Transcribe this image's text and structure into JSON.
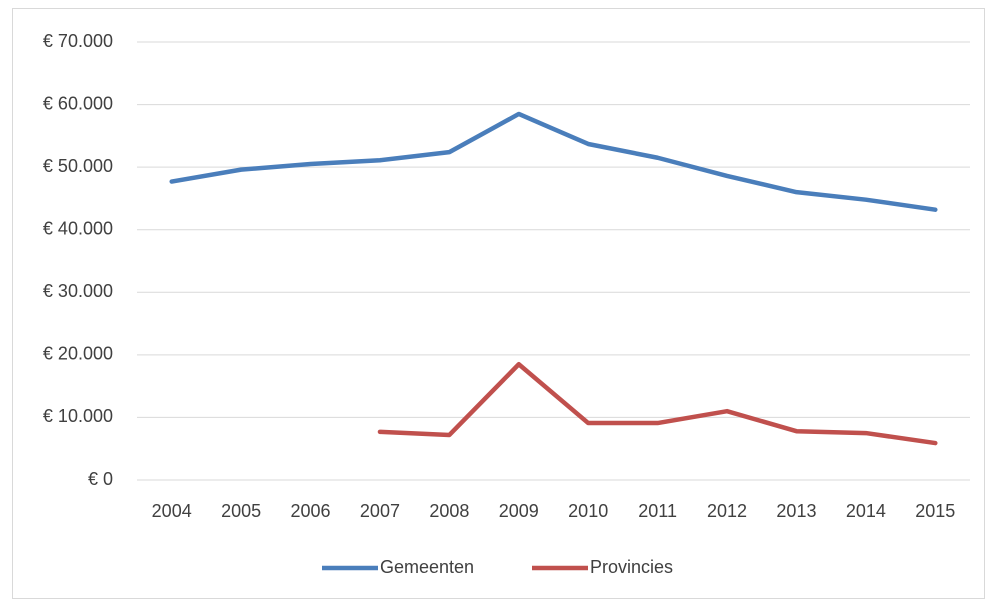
{
  "chart_data": {
    "type": "line",
    "categories": [
      "2004",
      "2005",
      "2006",
      "2007",
      "2008",
      "2009",
      "2010",
      "2011",
      "2012",
      "2013",
      "2014",
      "2015"
    ],
    "series": [
      {
        "name": "Gemeenten",
        "color": "#4a7ebb",
        "values": [
          47700,
          49600,
          50500,
          51100,
          52400,
          58500,
          53700,
          51500,
          48600,
          46000,
          44800,
          43200
        ]
      },
      {
        "name": "Provincies",
        "color": "#c0504d",
        "values": [
          null,
          null,
          null,
          7700,
          7200,
          18500,
          9100,
          9100,
          11000,
          7800,
          7500,
          5900
        ]
      }
    ],
    "ylim": [
      0,
      70000
    ],
    "yticks": [
      {
        "value": 0,
        "label": "€ 0"
      },
      {
        "value": 10000,
        "label": "€ 10.000"
      },
      {
        "value": 20000,
        "label": "€ 20.000"
      },
      {
        "value": 30000,
        "label": "€ 30.000"
      },
      {
        "value": 40000,
        "label": "€ 40.000"
      },
      {
        "value": 50000,
        "label": "€ 50.000"
      },
      {
        "value": 60000,
        "label": "€ 60.000"
      },
      {
        "value": 70000,
        "label": "€ 70.000"
      }
    ],
    "grid": true,
    "legend": "bottom"
  }
}
